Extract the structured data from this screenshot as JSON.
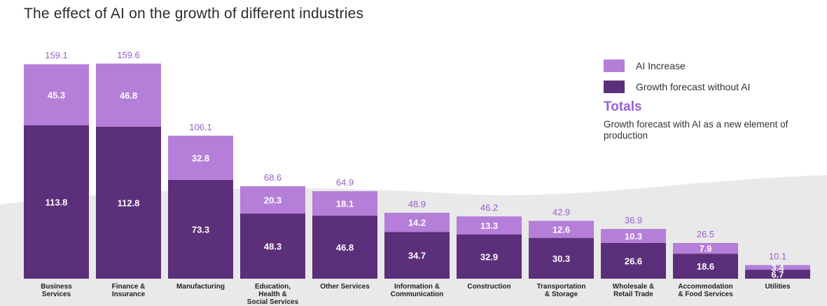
{
  "title": "The effect of AI on the growth of different industries",
  "legend": {
    "ai_increase": "AI Increase",
    "baseline": "Growth forecast without AI",
    "totals_title": "Totals",
    "totals_desc": "Growth forecast with AI as a new element of production"
  },
  "colors": {
    "ai_increase": "#b57ed8",
    "baseline": "#5c2f7b",
    "total_label": "#9a5fcf",
    "background_band": "#e9e9e9"
  },
  "chart_data": {
    "type": "bar",
    "stacked": true,
    "title": "The effect of AI on the growth of different industries",
    "categories": [
      [
        "Business",
        "Services"
      ],
      [
        "Finance &",
        "Insurance"
      ],
      [
        "Manufacturing"
      ],
      [
        "Education,",
        "Health &",
        "Social Services"
      ],
      [
        "Other Services"
      ],
      [
        "Information &",
        "Communication"
      ],
      [
        "Construction"
      ],
      [
        "Transportation",
        "& Storage"
      ],
      [
        "Wholesale &",
        "Retail Trade"
      ],
      [
        "Accommodation",
        "& Food Services"
      ],
      [
        "Utilities"
      ]
    ],
    "series": [
      {
        "name": "Growth forecast without AI",
        "values": [
          113.8,
          112.8,
          73.3,
          48.3,
          46.8,
          34.7,
          32.9,
          30.3,
          26.6,
          18.6,
          6.7
        ]
      },
      {
        "name": "AI Increase",
        "values": [
          45.3,
          46.8,
          32.8,
          20.3,
          18.1,
          14.2,
          13.3,
          12.6,
          10.3,
          7.9,
          3.4
        ]
      }
    ],
    "totals": [
      159.1,
      159.6,
      106.1,
      68.6,
      64.9,
      48.9,
      46.2,
      42.9,
      36.9,
      26.5,
      10.1
    ],
    "legend_position": "top-right",
    "grid": false
  }
}
